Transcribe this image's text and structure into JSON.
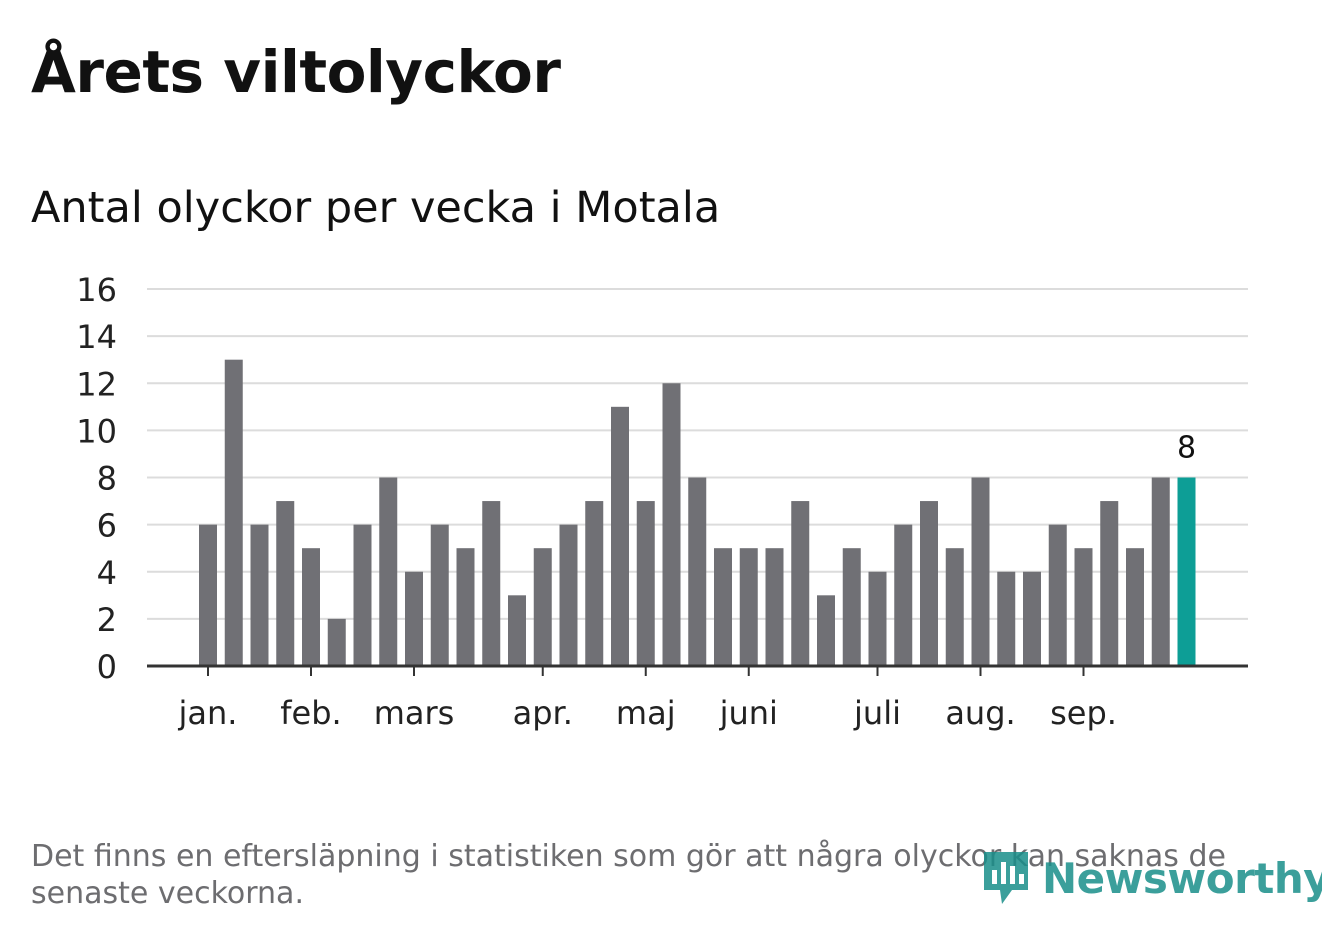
{
  "header": {
    "title": "Årets viltolyckor",
    "subtitle": "Antal olyckor per vecka i Motala"
  },
  "footnote": {
    "text": "Det finns en eftersläpning i statistiken som gör att några olyckor kan saknas de senaste veckorna."
  },
  "logo": {
    "name": "Newsworthy",
    "icon": "newsworthy-logo-icon",
    "color": "#1a8f8a"
  },
  "colors": {
    "bar": "#707075",
    "highlight": "#0d9e96",
    "grid": "#dcdcdc",
    "axis": "#333333",
    "tick_text": "#222222"
  },
  "chart_data": {
    "type": "bar",
    "title": "Antal olyckor per vecka i Motala",
    "xlabel": "",
    "ylabel": "",
    "ylim": [
      0,
      16
    ],
    "yticks": [
      "0",
      "2",
      "4",
      "6",
      "8",
      "10",
      "12",
      "14",
      "16"
    ],
    "values": [
      6,
      13,
      6,
      7,
      5,
      2,
      6,
      8,
      4,
      6,
      5,
      7,
      3,
      5,
      6,
      7,
      11,
      7,
      12,
      8,
      5,
      5,
      5,
      7,
      3,
      5,
      4,
      6,
      7,
      5,
      8,
      4,
      4,
      6,
      5,
      7,
      5,
      8,
      8
    ],
    "highlight_index": 38,
    "highlight_label": "8",
    "month_labels": [
      {
        "label": "jan.",
        "week_index": 0
      },
      {
        "label": "feb.",
        "week_index": 4
      },
      {
        "label": "mars",
        "week_index": 8
      },
      {
        "label": "apr.",
        "week_index": 13
      },
      {
        "label": "maj",
        "week_index": 17
      },
      {
        "label": "juni",
        "week_index": 21
      },
      {
        "label": "juli",
        "week_index": 26
      },
      {
        "label": "aug.",
        "week_index": 30
      },
      {
        "label": "sep.",
        "week_index": 34
      }
    ],
    "grid": true,
    "legend": "none"
  }
}
